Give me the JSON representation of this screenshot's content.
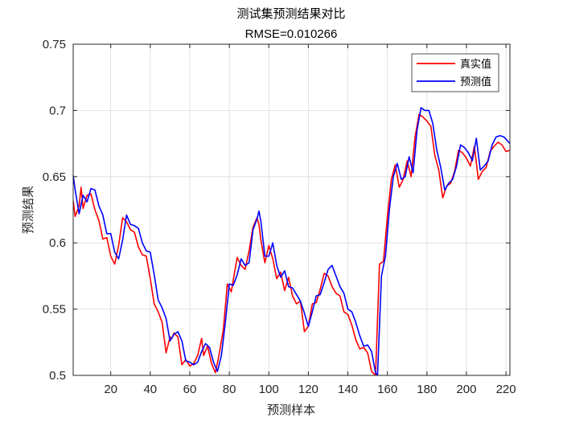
{
  "chart_data": {
    "type": "line",
    "title": "测试集预测结果对比",
    "subtitle": "RMSE=0.010266",
    "xlabel": "预测样本",
    "ylabel": "预测结果",
    "xlim": [
      1,
      222
    ],
    "ylim": [
      0.5,
      0.75
    ],
    "xticks": [
      "20",
      "40",
      "60",
      "80",
      "100",
      "120",
      "140",
      "160",
      "180",
      "200",
      "220"
    ],
    "xtick_values": [
      20,
      40,
      60,
      80,
      100,
      120,
      140,
      160,
      180,
      200,
      220
    ],
    "yticks": [
      "0.5",
      "0.55",
      "0.6",
      "0.65",
      "0.7",
      "0.75"
    ],
    "ytick_values": [
      0.5,
      0.55,
      0.6,
      0.65,
      0.7,
      0.75
    ],
    "grid": true,
    "legend_position": "top-right",
    "series": [
      {
        "name": "真实值",
        "color": "#ff0000",
        "knots": [
          [
            1,
            0.632
          ],
          [
            2,
            0.62
          ],
          [
            4,
            0.628
          ],
          [
            5,
            0.642
          ],
          [
            6,
            0.626
          ],
          [
            8,
            0.636
          ],
          [
            10,
            0.637
          ],
          [
            12,
            0.625
          ],
          [
            14,
            0.617
          ],
          [
            16,
            0.603
          ],
          [
            18,
            0.604
          ],
          [
            20,
            0.59
          ],
          [
            22,
            0.584
          ],
          [
            24,
            0.598
          ],
          [
            26,
            0.619
          ],
          [
            28,
            0.616
          ],
          [
            30,
            0.61
          ],
          [
            32,
            0.608
          ],
          [
            34,
            0.597
          ],
          [
            36,
            0.591
          ],
          [
            38,
            0.59
          ],
          [
            40,
            0.573
          ],
          [
            42,
            0.554
          ],
          [
            44,
            0.548
          ],
          [
            46,
            0.54
          ],
          [
            48,
            0.517
          ],
          [
            50,
            0.529
          ],
          [
            51,
            0.528
          ],
          [
            52,
            0.532
          ],
          [
            54,
            0.529
          ],
          [
            56,
            0.508
          ],
          [
            58,
            0.512
          ],
          [
            60,
            0.507
          ],
          [
            62,
            0.509
          ],
          [
            64,
            0.515
          ],
          [
            66,
            0.528
          ],
          [
            67,
            0.515
          ],
          [
            69,
            0.522
          ],
          [
            71,
            0.509
          ],
          [
            73,
            0.502
          ],
          [
            75,
            0.517
          ],
          [
            77,
            0.535
          ],
          [
            79,
            0.569
          ],
          [
            81,
            0.563
          ],
          [
            82,
            0.572
          ],
          [
            84,
            0.589
          ],
          [
            86,
            0.583
          ],
          [
            88,
            0.58
          ],
          [
            90,
            0.594
          ],
          [
            92,
            0.612
          ],
          [
            94,
            0.619
          ],
          [
            95,
            0.614
          ],
          [
            96,
            0.602
          ],
          [
            98,
            0.585
          ],
          [
            100,
            0.598
          ],
          [
            102,
            0.588
          ],
          [
            104,
            0.573
          ],
          [
            106,
            0.578
          ],
          [
            108,
            0.564
          ],
          [
            110,
            0.574
          ],
          [
            112,
            0.56
          ],
          [
            114,
            0.554
          ],
          [
            116,
            0.556
          ],
          [
            118,
            0.533
          ],
          [
            120,
            0.537
          ],
          [
            122,
            0.554
          ],
          [
            124,
            0.555
          ],
          [
            126,
            0.565
          ],
          [
            128,
            0.577
          ],
          [
            130,
            0.575
          ],
          [
            132,
            0.567
          ],
          [
            134,
            0.562
          ],
          [
            136,
            0.56
          ],
          [
            138,
            0.548
          ],
          [
            140,
            0.546
          ],
          [
            142,
            0.538
          ],
          [
            144,
            0.527
          ],
          [
            146,
            0.52
          ],
          [
            148,
            0.521
          ],
          [
            150,
            0.517
          ],
          [
            152,
            0.503
          ],
          [
            154,
            0.5
          ],
          [
            156,
            0.584
          ],
          [
            158,
            0.586
          ],
          [
            160,
            0.62
          ],
          [
            162,
            0.648
          ],
          [
            164,
            0.659
          ],
          [
            166,
            0.642
          ],
          [
            168,
            0.648
          ],
          [
            170,
            0.662
          ],
          [
            172,
            0.65
          ],
          [
            174,
            0.68
          ],
          [
            176,
            0.697
          ],
          [
            178,
            0.695
          ],
          [
            180,
            0.692
          ],
          [
            182,
            0.688
          ],
          [
            184,
            0.666
          ],
          [
            186,
            0.655
          ],
          [
            188,
            0.634
          ],
          [
            190,
            0.643
          ],
          [
            192,
            0.645
          ],
          [
            194,
            0.654
          ],
          [
            196,
            0.67
          ],
          [
            198,
            0.668
          ],
          [
            200,
            0.664
          ],
          [
            202,
            0.658
          ],
          [
            204,
            0.673
          ],
          [
            206,
            0.648
          ],
          [
            208,
            0.654
          ],
          [
            210,
            0.657
          ],
          [
            212,
            0.669
          ],
          [
            214,
            0.673
          ],
          [
            216,
            0.676
          ],
          [
            218,
            0.674
          ],
          [
            220,
            0.669
          ],
          [
            222,
            0.67
          ]
        ]
      },
      {
        "name": "预测值",
        "color": "#0000ff",
        "knots": [
          [
            1,
            0.651
          ],
          [
            2,
            0.64
          ],
          [
            4,
            0.622
          ],
          [
            6,
            0.636
          ],
          [
            8,
            0.631
          ],
          [
            10,
            0.641
          ],
          [
            12,
            0.64
          ],
          [
            14,
            0.628
          ],
          [
            16,
            0.621
          ],
          [
            18,
            0.607
          ],
          [
            20,
            0.607
          ],
          [
            22,
            0.593
          ],
          [
            24,
            0.588
          ],
          [
            26,
            0.602
          ],
          [
            28,
            0.621
          ],
          [
            30,
            0.614
          ],
          [
            32,
            0.613
          ],
          [
            34,
            0.611
          ],
          [
            36,
            0.6
          ],
          [
            38,
            0.594
          ],
          [
            40,
            0.593
          ],
          [
            42,
            0.576
          ],
          [
            44,
            0.557
          ],
          [
            46,
            0.551
          ],
          [
            48,
            0.543
          ],
          [
            50,
            0.526
          ],
          [
            52,
            0.531
          ],
          [
            54,
            0.533
          ],
          [
            56,
            0.526
          ],
          [
            58,
            0.511
          ],
          [
            60,
            0.51
          ],
          [
            62,
            0.508
          ],
          [
            64,
            0.51
          ],
          [
            66,
            0.518
          ],
          [
            68,
            0.524
          ],
          [
            70,
            0.521
          ],
          [
            72,
            0.51
          ],
          [
            74,
            0.503
          ],
          [
            76,
            0.515
          ],
          [
            78,
            0.54
          ],
          [
            80,
            0.569
          ],
          [
            82,
            0.568
          ],
          [
            84,
            0.576
          ],
          [
            86,
            0.588
          ],
          [
            88,
            0.583
          ],
          [
            90,
            0.585
          ],
          [
            92,
            0.61
          ],
          [
            94,
            0.618
          ],
          [
            95,
            0.624
          ],
          [
            96,
            0.616
          ],
          [
            98,
            0.59
          ],
          [
            100,
            0.59
          ],
          [
            102,
            0.6
          ],
          [
            104,
            0.583
          ],
          [
            106,
            0.574
          ],
          [
            108,
            0.579
          ],
          [
            110,
            0.567
          ],
          [
            112,
            0.566
          ],
          [
            114,
            0.561
          ],
          [
            116,
            0.556
          ],
          [
            118,
            0.547
          ],
          [
            120,
            0.537
          ],
          [
            122,
            0.548
          ],
          [
            124,
            0.56
          ],
          [
            126,
            0.561
          ],
          [
            128,
            0.57
          ],
          [
            130,
            0.58
          ],
          [
            132,
            0.583
          ],
          [
            134,
            0.575
          ],
          [
            136,
            0.567
          ],
          [
            138,
            0.562
          ],
          [
            140,
            0.55
          ],
          [
            142,
            0.548
          ],
          [
            144,
            0.54
          ],
          [
            146,
            0.53
          ],
          [
            148,
            0.522
          ],
          [
            150,
            0.523
          ],
          [
            152,
            0.518
          ],
          [
            154,
            0.502
          ],
          [
            155,
            0.5
          ],
          [
            157,
            0.575
          ],
          [
            159,
            0.59
          ],
          [
            161,
            0.625
          ],
          [
            163,
            0.65
          ],
          [
            165,
            0.66
          ],
          [
            167,
            0.648
          ],
          [
            169,
            0.65
          ],
          [
            171,
            0.665
          ],
          [
            173,
            0.653
          ],
          [
            175,
            0.685
          ],
          [
            177,
            0.702
          ],
          [
            179,
            0.7
          ],
          [
            181,
            0.7
          ],
          [
            183,
            0.69
          ],
          [
            185,
            0.67
          ],
          [
            187,
            0.657
          ],
          [
            189,
            0.64
          ],
          [
            191,
            0.645
          ],
          [
            193,
            0.648
          ],
          [
            195,
            0.658
          ],
          [
            197,
            0.674
          ],
          [
            199,
            0.672
          ],
          [
            201,
            0.668
          ],
          [
            203,
            0.662
          ],
          [
            205,
            0.679
          ],
          [
            207,
            0.655
          ],
          [
            209,
            0.658
          ],
          [
            211,
            0.662
          ],
          [
            213,
            0.674
          ],
          [
            215,
            0.68
          ],
          [
            217,
            0.681
          ],
          [
            219,
            0.68
          ],
          [
            222,
            0.675
          ]
        ]
      }
    ]
  }
}
